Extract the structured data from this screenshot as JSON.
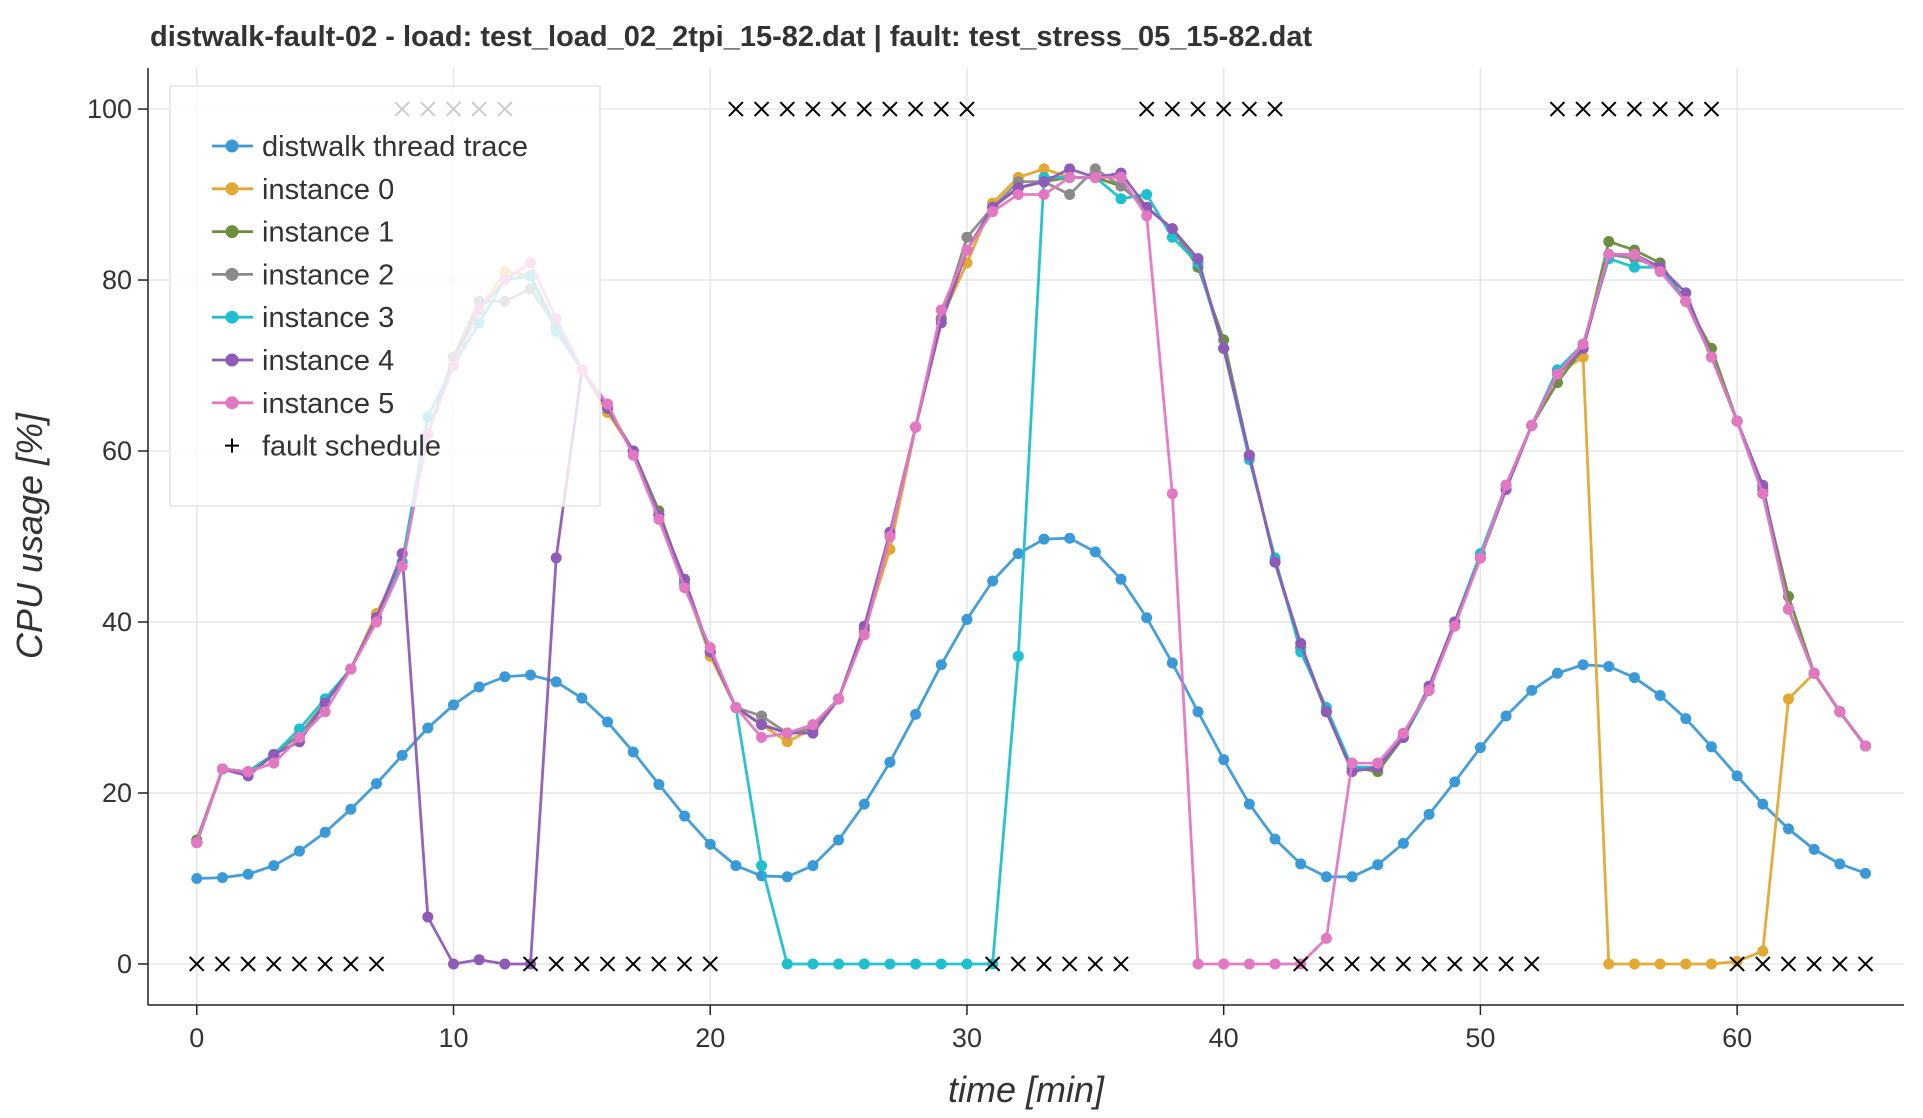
{
  "chart_data": {
    "type": "line",
    "title": "distwalk-fault-02 - load: test_load_02_2tpi_15-82.dat | fault: test_stress_05_15-82.dat",
    "xlabel": "time [min]",
    "ylabel": "CPU usage [%]",
    "x": [
      0,
      1,
      2,
      3,
      4,
      5,
      6,
      7,
      8,
      9,
      10,
      11,
      12,
      13,
      14,
      15,
      16,
      17,
      18,
      19,
      20,
      21,
      22,
      23,
      24,
      25,
      26,
      27,
      28,
      29,
      30,
      31,
      32,
      33,
      34,
      35,
      36,
      37,
      38,
      39,
      40,
      41,
      42,
      43,
      44,
      45,
      46,
      47,
      48,
      49,
      50,
      51,
      52,
      53,
      54,
      55,
      56,
      57,
      58,
      59,
      60,
      61,
      62,
      63,
      64,
      65
    ],
    "xlim": [
      -1.9,
      66.5
    ],
    "ylim": [
      -4.8,
      104.8
    ],
    "xticks": [
      0,
      10,
      20,
      30,
      40,
      50,
      60
    ],
    "yticks": [
      0,
      20,
      40,
      60,
      80,
      100
    ],
    "grid": true,
    "legend": "upper left",
    "series": [
      {
        "name": "distwalk thread trace",
        "color": "#3a9ad9",
        "marker": "o",
        "values": [
          10,
          10.1,
          10.5,
          11.5,
          13.2,
          15.4,
          18.1,
          21.1,
          24.4,
          27.6,
          30.3,
          32.4,
          33.6,
          33.8,
          33,
          31.1,
          28.3,
          24.8,
          21,
          17.3,
          14,
          11.5,
          10.3,
          10.2,
          11.5,
          14.5,
          18.7,
          23.6,
          29.2,
          35,
          40.3,
          44.8,
          48,
          49.7,
          49.8,
          48.2,
          45,
          40.5,
          35.2,
          29.5,
          23.9,
          18.7,
          14.6,
          11.7,
          10.2,
          10.2,
          11.6,
          14.1,
          17.5,
          21.3,
          25.3,
          29,
          32,
          34,
          35,
          34.8,
          33.5,
          31.4,
          28.7,
          25.4,
          22,
          18.7,
          15.8,
          13.4,
          11.7,
          10.6
        ]
      },
      {
        "name": "instance 0",
        "color": "#e3a832",
        "marker": "o",
        "values": [
          14.2,
          22.8,
          22.5,
          24.5,
          26.8,
          30.5,
          34.5,
          41,
          47,
          62,
          71,
          76.5,
          81,
          80.5,
          74.5,
          69.5,
          64.5,
          60,
          52.5,
          44.5,
          36,
          30,
          28,
          26,
          27.5,
          31,
          39,
          48.5,
          62.8,
          75.5,
          82,
          89,
          92,
          93,
          92,
          92,
          91,
          88.5,
          86,
          82,
          72,
          59.5,
          47,
          37,
          29.5,
          23,
          23,
          26.5,
          32,
          40,
          47.5,
          56,
          63,
          69,
          71,
          0,
          0,
          0,
          0,
          0,
          0.3,
          1.5,
          31,
          34,
          29.5,
          25.5
        ]
      },
      {
        "name": "instance 1",
        "color": "#6b8e3e",
        "marker": "o",
        "values": [
          14.5,
          22.8,
          22.5,
          24.5,
          26.8,
          30.5,
          34.5,
          40.5,
          47,
          62,
          71,
          76.5,
          80,
          80.5,
          74.5,
          69.5,
          65,
          60,
          53,
          44.5,
          36.5,
          30,
          28,
          27,
          27.5,
          31,
          39,
          50,
          62.8,
          75.5,
          83.5,
          88.5,
          90.8,
          91.5,
          92,
          92,
          91,
          88.5,
          86,
          81.5,
          73,
          59.5,
          47,
          37,
          29.5,
          23,
          22.5,
          26.5,
          32,
          40,
          47.5,
          56,
          63,
          68,
          72,
          84.5,
          83.5,
          82,
          77.5,
          72,
          63.5,
          55.5,
          43,
          34,
          29.5,
          25.5
        ]
      },
      {
        "name": "instance 2",
        "color": "#8a8a8a",
        "marker": "o",
        "values": [
          14.2,
          22.8,
          22.5,
          24.5,
          26.8,
          30.5,
          34.5,
          40.5,
          47,
          62,
          71,
          77.5,
          77.5,
          79,
          74.5,
          69.5,
          65,
          60,
          52.5,
          44.5,
          36.5,
          30,
          29,
          27,
          27.5,
          31,
          39,
          50,
          62.8,
          75.5,
          85,
          88.5,
          91.5,
          91.5,
          90,
          93,
          91,
          88.5,
          86,
          82,
          72,
          59.5,
          47,
          37,
          29.5,
          23,
          23,
          26.5,
          32,
          40,
          47.5,
          56,
          63,
          69,
          72,
          83,
          82.5,
          81.5,
          77.5,
          71,
          63.5,
          55.5,
          41.5,
          34,
          29.5,
          25.5
        ]
      },
      {
        "name": "instance 3",
        "color": "#1ebfcf",
        "marker": "o",
        "values": [
          14.2,
          22.8,
          22.5,
          24.5,
          27.5,
          31,
          34.5,
          40.5,
          47,
          64,
          70,
          75,
          80,
          80.5,
          74,
          69.5,
          65,
          60,
          52.5,
          44.5,
          36.5,
          30,
          11.5,
          0,
          0,
          0,
          0,
          0,
          0,
          0,
          0,
          0,
          36,
          92,
          92,
          92,
          89.5,
          90,
          85,
          82,
          72,
          59,
          47.5,
          36.5,
          30,
          23,
          23,
          26.5,
          32,
          40,
          48,
          56,
          63,
          69.5,
          72.5,
          82.5,
          81.5,
          81.5,
          77.5,
          71,
          63.5,
          55,
          41.5,
          34,
          29.5,
          25.5
        ]
      },
      {
        "name": "instance 4",
        "color": "#8e5bb8",
        "marker": "o",
        "values": [
          14.2,
          22.8,
          22,
          24.5,
          26,
          30.5,
          34.5,
          40.5,
          48,
          5.5,
          0,
          0.5,
          0,
          0,
          47.5,
          69.5,
          65,
          60,
          52.5,
          45,
          36.5,
          30,
          28,
          27,
          27,
          31,
          39.5,
          50.5,
          62.8,
          75,
          83.5,
          88.5,
          90.8,
          91.5,
          93,
          92,
          92.5,
          88.5,
          86,
          82.5,
          72,
          59.5,
          47,
          37.5,
          29.5,
          22.5,
          23,
          26.5,
          32.5,
          40,
          47.5,
          55.5,
          63,
          69,
          72,
          83,
          83,
          81.5,
          78.5,
          71,
          63.5,
          56,
          41.5,
          34,
          29.5,
          25.5
        ]
      },
      {
        "name": "instance 5",
        "color": "#e377c2",
        "marker": "o",
        "values": [
          14.2,
          22.8,
          22.5,
          23.5,
          26.5,
          29.5,
          34.5,
          40,
          46.5,
          62,
          70,
          76.5,
          80,
          82,
          75.5,
          69.5,
          65.5,
          59.5,
          52,
          44,
          37,
          30,
          26.5,
          27,
          28,
          31,
          38.5,
          50,
          62.8,
          76.5,
          83.5,
          88,
          90,
          90,
          92,
          92,
          92,
          87.5,
          55,
          0,
          0,
          0,
          0,
          0,
          3,
          23.5,
          23.5,
          27,
          32,
          39.5,
          47.5,
          56,
          63,
          69,
          72.5,
          83,
          83,
          81,
          77.5,
          71,
          63.5,
          55,
          41.5,
          34,
          29.5,
          25.5
        ]
      },
      {
        "name": "fault schedule",
        "color": "#000000",
        "marker": "x",
        "values": [
          0,
          0,
          0,
          0,
          0,
          0,
          0,
          0,
          100,
          100,
          100,
          100,
          100,
          0,
          0,
          0,
          0,
          0,
          0,
          0,
          0,
          100,
          100,
          100,
          100,
          100,
          100,
          100,
          100,
          100,
          100,
          0,
          0,
          0,
          0,
          0,
          0,
          100,
          100,
          100,
          100,
          100,
          100,
          0,
          0,
          0,
          0,
          0,
          0,
          0,
          0,
          0,
          0,
          100,
          100,
          100,
          100,
          100,
          100,
          100,
          0,
          0,
          0,
          0,
          0,
          0
        ]
      }
    ]
  }
}
